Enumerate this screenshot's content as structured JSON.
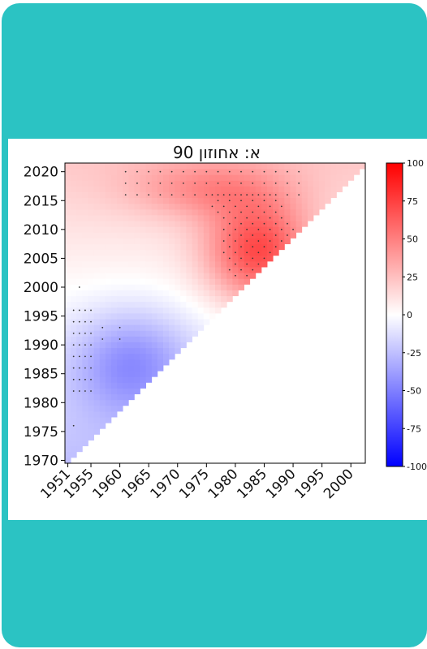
{
  "chart_data": {
    "type": "heatmap",
    "title": "א: אחוזון 90",
    "xlabel": "",
    "ylabel": "",
    "x_ticks": [
      "1951",
      "1955",
      "1960",
      "1965",
      "1970",
      "1975",
      "1980",
      "1985",
      "1990",
      "1995",
      "2000"
    ],
    "x_tick_values": [
      1951,
      1955,
      1960,
      1965,
      1970,
      1975,
      1980,
      1985,
      1990,
      1995,
      2000
    ],
    "y_ticks": [
      "2020",
      "2015",
      "2010",
      "2005",
      "2000",
      "1995",
      "1990",
      "1985",
      "1980",
      "1975",
      "1970"
    ],
    "y_tick_values": [
      2020,
      2015,
      2010,
      2005,
      2000,
      1995,
      1990,
      1985,
      1980,
      1975,
      1970
    ],
    "xlim": [
      1950.5,
      2002.5
    ],
    "ylim": [
      1969.5,
      2021.5
    ],
    "colorbar": {
      "ticks": [
        "100",
        "75",
        "50",
        "25",
        "0",
        "-25",
        "-50",
        "-75",
        "-100"
      ],
      "range": [
        -100,
        100
      ],
      "colormap": "bwr",
      "low_color": "#0000ff",
      "mid_color": "#ffffff",
      "high_color": "#ff0000"
    },
    "grid": false,
    "value_note": "colour = value from -100 to 100; cells exist where end year ≥ start year + 19; dots mark stippled cells"
  }
}
